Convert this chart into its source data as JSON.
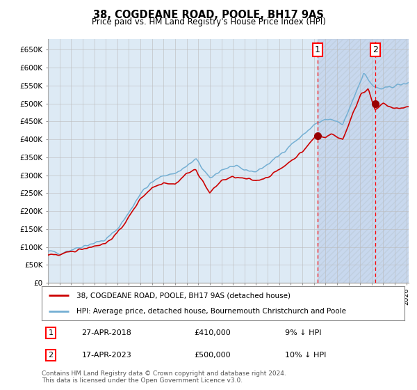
{
  "title": "38, COGDEANE ROAD, POOLE, BH17 9AS",
  "subtitle": "Price paid vs. HM Land Registry's House Price Index (HPI)",
  "ylabel_ticks": [
    "£0",
    "£50K",
    "£100K",
    "£150K",
    "£200K",
    "£250K",
    "£300K",
    "£350K",
    "£400K",
    "£450K",
    "£500K",
    "£550K",
    "£600K",
    "£650K"
  ],
  "ytick_vals": [
    0,
    50000,
    100000,
    150000,
    200000,
    250000,
    300000,
    350000,
    400000,
    450000,
    500000,
    550000,
    600000,
    650000
  ],
  "ylim": [
    0,
    680000
  ],
  "xlim_start": 1995.0,
  "xlim_end": 2026.2,
  "hpi_color": "#74afd3",
  "price_color": "#cc0000",
  "background_color": "#ddeaf5",
  "grid_color": "#bbbbbb",
  "sale1_x": 2018.32,
  "sale1_y": 410000,
  "sale2_x": 2023.3,
  "sale2_y": 500000,
  "legend1_text": "38, COGDEANE ROAD, POOLE, BH17 9AS (detached house)",
  "legend2_text": "HPI: Average price, detached house, Bournemouth Christchurch and Poole",
  "footnote": "Contains HM Land Registry data © Crown copyright and database right 2024.\nThis data is licensed under the Open Government Licence v3.0.",
  "hatch_region_start": 2018.32,
  "hatch_region_end": 2026.2,
  "hatch_color": "#c8d8ee",
  "hatch_line_color": "#b0c4de"
}
